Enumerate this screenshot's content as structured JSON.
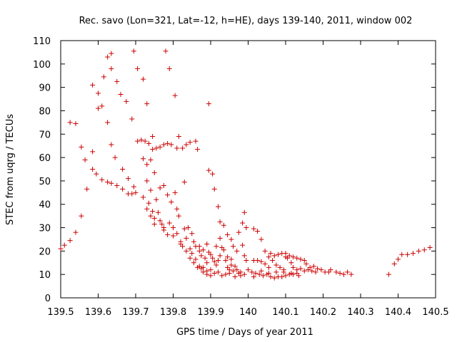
{
  "chart_data": {
    "type": "scatter",
    "title": "Rec. savo (Lon=321, Lat=-12, h=HE), days 139-140, 2011, window 002",
    "xlabel": "GPS time / Days of year 2011",
    "ylabel": "STEC from uqrg / TECUs",
    "xlim": [
      139.5,
      140.5
    ],
    "ylim": [
      0,
      110
    ],
    "xticks": [
      139.5,
      139.6,
      139.7,
      139.8,
      139.9,
      140.0,
      140.1,
      140.2,
      140.3,
      140.4,
      140.5
    ],
    "xtick_labels": [
      "139.5",
      "139.6",
      "139.7",
      "139.8",
      "139.9",
      "140",
      "140.1",
      "140.2",
      "140.3",
      "140.4",
      "140.5"
    ],
    "yticks": [
      0,
      10,
      20,
      30,
      40,
      50,
      60,
      70,
      80,
      90,
      100,
      110
    ],
    "ytick_labels": [
      "0",
      "10",
      "20",
      "30",
      "40",
      "50",
      "60",
      "70",
      "80",
      "90",
      "100",
      "110"
    ],
    "grid": false,
    "marker": "+",
    "color": "#cc0000",
    "series": [
      {
        "name": "STEC",
        "points": [
          [
            139.5,
            21
          ],
          [
            139.51,
            22.5
          ],
          [
            139.525,
            24.5
          ],
          [
            139.54,
            28
          ],
          [
            139.555,
            35
          ],
          [
            139.525,
            75
          ],
          [
            139.54,
            74.5
          ],
          [
            139.555,
            64.5
          ],
          [
            139.565,
            59
          ],
          [
            139.57,
            46.5
          ],
          [
            139.585,
            62.5
          ],
          [
            139.585,
            55
          ],
          [
            139.595,
            53
          ],
          [
            139.61,
            50.5
          ],
          [
            139.625,
            49.5
          ],
          [
            139.635,
            49
          ],
          [
            139.65,
            48
          ],
          [
            139.665,
            46.5
          ],
          [
            139.68,
            44.5
          ],
          [
            139.69,
            44.5
          ],
          [
            139.7,
            45
          ],
          [
            139.695,
            47.5
          ],
          [
            139.585,
            91
          ],
          [
            139.6,
            87.5
          ],
          [
            139.6,
            81
          ],
          [
            139.615,
            94.5
          ],
          [
            139.61,
            82
          ],
          [
            139.625,
            103
          ],
          [
            139.635,
            104.5
          ],
          [
            139.635,
            98
          ],
          [
            139.65,
            92.5
          ],
          [
            139.66,
            87
          ],
          [
            139.625,
            75
          ],
          [
            139.635,
            65.5
          ],
          [
            139.645,
            60
          ],
          [
            139.665,
            55
          ],
          [
            139.675,
            84
          ],
          [
            139.68,
            51
          ],
          [
            139.69,
            76.5
          ],
          [
            139.695,
            105.5
          ],
          [
            139.705,
            98
          ],
          [
            139.715,
            67.5
          ],
          [
            139.72,
            93.5
          ],
          [
            139.73,
            83
          ],
          [
            139.72,
            59.5
          ],
          [
            139.705,
            67
          ],
          [
            139.725,
            67
          ],
          [
            139.735,
            66
          ],
          [
            139.745,
            63.5
          ],
          [
            139.745,
            69
          ],
          [
            139.755,
            64
          ],
          [
            139.765,
            64.5
          ],
          [
            139.775,
            65.5
          ],
          [
            139.785,
            66
          ],
          [
            139.79,
            98
          ],
          [
            139.78,
            105.5
          ],
          [
            139.805,
            86.5
          ],
          [
            139.795,
            65.5
          ],
          [
            139.81,
            64
          ],
          [
            139.815,
            69
          ],
          [
            139.825,
            64
          ],
          [
            139.835,
            65.5
          ],
          [
            139.845,
            66.5
          ],
          [
            139.86,
            67
          ],
          [
            139.865,
            63.5
          ],
          [
            139.73,
            57
          ],
          [
            139.74,
            59
          ],
          [
            139.73,
            50
          ],
          [
            139.74,
            46
          ],
          [
            139.75,
            53.5
          ],
          [
            139.755,
            42
          ],
          [
            139.765,
            47
          ],
          [
            139.775,
            48
          ],
          [
            139.785,
            44
          ],
          [
            139.795,
            41
          ],
          [
            139.805,
            45
          ],
          [
            139.81,
            38
          ],
          [
            139.815,
            35
          ],
          [
            139.83,
            49.5
          ],
          [
            139.735,
            40.5
          ],
          [
            139.745,
            37
          ],
          [
            139.75,
            34
          ],
          [
            139.76,
            36.5
          ],
          [
            139.77,
            31.5
          ],
          [
            139.775,
            29
          ],
          [
            139.785,
            27
          ],
          [
            139.8,
            30
          ],
          [
            139.81,
            27.5
          ],
          [
            139.82,
            24
          ],
          [
            139.825,
            22
          ],
          [
            139.83,
            29.5
          ],
          [
            139.835,
            25.5
          ],
          [
            139.845,
            21
          ],
          [
            139.85,
            19
          ],
          [
            139.86,
            16.5
          ],
          [
            139.87,
            13.5
          ],
          [
            139.88,
            11
          ],
          [
            139.89,
            10
          ],
          [
            139.9,
            9.5
          ],
          [
            139.72,
            43
          ],
          [
            139.73,
            38
          ],
          [
            139.74,
            35
          ],
          [
            139.75,
            31.5
          ],
          [
            139.765,
            33
          ],
          [
            139.775,
            30
          ],
          [
            139.79,
            32
          ],
          [
            139.8,
            26.5
          ],
          [
            139.82,
            23
          ],
          [
            139.835,
            20
          ],
          [
            139.845,
            17
          ],
          [
            139.855,
            15
          ],
          [
            139.865,
            13
          ],
          [
            139.875,
            12.5
          ],
          [
            139.89,
            11.5
          ],
          [
            139.895,
            83
          ],
          [
            139.895,
            54.5
          ],
          [
            139.905,
            53
          ],
          [
            139.91,
            46.5
          ],
          [
            139.92,
            39
          ],
          [
            139.925,
            32.5
          ],
          [
            139.935,
            31
          ],
          [
            139.945,
            27
          ],
          [
            139.955,
            25
          ],
          [
            139.96,
            22
          ],
          [
            139.97,
            20
          ],
          [
            139.975,
            28
          ],
          [
            139.985,
            32
          ],
          [
            139.99,
            36.5
          ],
          [
            139.995,
            30
          ],
          [
            139.985,
            22.5
          ],
          [
            139.99,
            18
          ],
          [
            139.995,
            16
          ],
          [
            139.84,
            30
          ],
          [
            139.85,
            27.5
          ],
          [
            139.855,
            24
          ],
          [
            139.86,
            22
          ],
          [
            139.87,
            20
          ],
          [
            139.875,
            18
          ],
          [
            139.885,
            17
          ],
          [
            139.895,
            19.5
          ],
          [
            139.905,
            17
          ],
          [
            139.91,
            15.5
          ],
          [
            139.915,
            14
          ],
          [
            139.92,
            16
          ],
          [
            139.925,
            18
          ],
          [
            139.935,
            20.5
          ],
          [
            139.94,
            16
          ],
          [
            139.945,
            13
          ],
          [
            139.95,
            12
          ],
          [
            139.955,
            14
          ],
          [
            139.96,
            11.5
          ],
          [
            139.97,
            12
          ],
          [
            139.975,
            10.5
          ],
          [
            139.98,
            11
          ],
          [
            139.99,
            10
          ],
          [
            139.87,
            22
          ],
          [
            139.88,
            20.5
          ],
          [
            139.89,
            23
          ],
          [
            139.9,
            18.5
          ],
          [
            139.915,
            22
          ],
          [
            139.925,
            25.5
          ],
          [
            139.93,
            21.5
          ],
          [
            139.945,
            17.5
          ],
          [
            139.955,
            16.5
          ],
          [
            139.965,
            13.5
          ],
          [
            139.88,
            13
          ],
          [
            139.89,
            15
          ],
          [
            139.9,
            12
          ],
          [
            139.91,
            10.5
          ],
          [
            139.92,
            11
          ],
          [
            139.93,
            9.5
          ],
          [
            139.94,
            10
          ],
          [
            139.95,
            10.5
          ],
          [
            139.965,
            9
          ],
          [
            139.98,
            9.5
          ],
          [
            140.015,
            29.5
          ],
          [
            140.025,
            28.5
          ],
          [
            140.035,
            25
          ],
          [
            140.045,
            20
          ],
          [
            140.055,
            17.5
          ],
          [
            140.06,
            19
          ],
          [
            140.07,
            18
          ],
          [
            140.08,
            18.5
          ],
          [
            140.09,
            19
          ],
          [
            140.1,
            19
          ],
          [
            140.11,
            18
          ],
          [
            140.12,
            17.5
          ],
          [
            140.13,
            17
          ],
          [
            140.14,
            16.5
          ],
          [
            140.15,
            16
          ],
          [
            140.155,
            14.5
          ],
          [
            140.165,
            13
          ],
          [
            140.175,
            13.5
          ],
          [
            140.185,
            12.5
          ],
          [
            140.195,
            12
          ],
          [
            140.205,
            11
          ],
          [
            140.215,
            11
          ],
          [
            140.22,
            12
          ],
          [
            140.235,
            11
          ],
          [
            140.245,
            10.5
          ],
          [
            140.255,
            10
          ],
          [
            140.265,
            11
          ],
          [
            140.275,
            10
          ],
          [
            140.015,
            16
          ],
          [
            140.025,
            16
          ],
          [
            140.035,
            15.5
          ],
          [
            140.045,
            14.5
          ],
          [
            140.055,
            13
          ],
          [
            140.065,
            16
          ],
          [
            140.075,
            14
          ],
          [
            140.085,
            13
          ],
          [
            140.095,
            12
          ],
          [
            140.1,
            17.5
          ],
          [
            140.105,
            17
          ],
          [
            140.115,
            15
          ],
          [
            140.12,
            13
          ],
          [
            140.13,
            12
          ],
          [
            140.14,
            12.5
          ],
          [
            140.15,
            11.5
          ],
          [
            140.16,
            12
          ],
          [
            140.17,
            11.5
          ],
          [
            140.18,
            11
          ],
          [
            140.0,
            12
          ],
          [
            140.01,
            11
          ],
          [
            140.02,
            10.5
          ],
          [
            140.03,
            10
          ],
          [
            140.04,
            9.5
          ],
          [
            140.05,
            10
          ],
          [
            140.06,
            9
          ],
          [
            140.07,
            8.5
          ],
          [
            140.08,
            9
          ],
          [
            140.09,
            9
          ],
          [
            140.1,
            9.5
          ],
          [
            140.11,
            10
          ],
          [
            140.12,
            10
          ],
          [
            140.13,
            10.5
          ],
          [
            140.015,
            9
          ],
          [
            140.035,
            11.5
          ],
          [
            140.055,
            10.5
          ],
          [
            140.075,
            11
          ],
          [
            140.095,
            11
          ],
          [
            140.115,
            10.5
          ],
          [
            140.135,
            9.5
          ],
          [
            140.375,
            10
          ],
          [
            140.39,
            14.5
          ],
          [
            140.4,
            16.5
          ],
          [
            140.41,
            18.5
          ],
          [
            140.425,
            18.5
          ],
          [
            140.44,
            19
          ],
          [
            140.455,
            20
          ],
          [
            140.47,
            20.5
          ],
          [
            140.485,
            21.5
          ]
        ]
      }
    ]
  }
}
